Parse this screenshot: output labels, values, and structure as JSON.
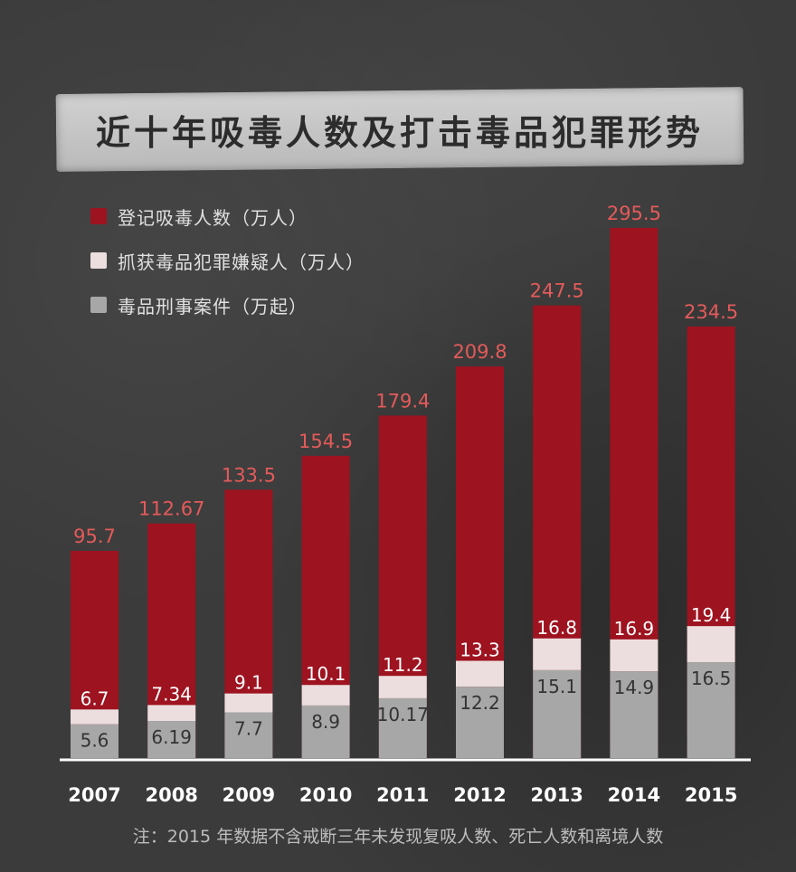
{
  "title": "近十年吸毒人数及打击毒品犯罪形势",
  "colors": {
    "registered": "#9e1320",
    "suspects": "#ecdede",
    "cases": "#a7a7a7",
    "registered_label": "#e45a5a",
    "value_text_dark": "#333333"
  },
  "legend": [
    {
      "label": "登记吸毒人数（万人）",
      "color": "#9e1320"
    },
    {
      "label": "抓获毒品犯罪嫌疑人（万人）",
      "color": "#ecdede"
    },
    {
      "label": "毒品刑事案件（万起）",
      "color": "#a7a7a7"
    }
  ],
  "chart_data": {
    "type": "bar",
    "categories": [
      "2007",
      "2008",
      "2009",
      "2010",
      "2011",
      "2012",
      "2013",
      "2014",
      "2015"
    ],
    "series": [
      {
        "name": "登记吸毒人数（万人）",
        "values": [
          95.7,
          112.67,
          133.5,
          154.5,
          179.4,
          209.8,
          247.5,
          295.5,
          234.5
        ]
      },
      {
        "name": "抓获毒品犯罪嫌疑人（万人）",
        "values": [
          6.7,
          7.34,
          9.1,
          10.1,
          11.2,
          13.3,
          16.8,
          16.9,
          19.4
        ]
      },
      {
        "name": "毒品刑事案件（万起）",
        "values": [
          5.6,
          6.19,
          7.7,
          8.9,
          10.17,
          12.2,
          15.1,
          14.9,
          16.5
        ]
      }
    ],
    "value_labels": {
      "registered": [
        "95.7",
        "112.67",
        "133.5",
        "154.5",
        "179.4",
        "209.8",
        "247.5",
        "295.5",
        "234.5"
      ],
      "suspects": [
        "6.7",
        "7.34",
        "9.1",
        "10.1",
        "11.2",
        "13.3",
        "16.8",
        "16.9",
        "19.4"
      ],
      "cases": [
        "5.6",
        "6.19",
        "7.7",
        "8.9",
        "10.17",
        "12.2",
        "15.1",
        "14.9",
        "16.5"
      ]
    },
    "legend_position": "top-left",
    "grid": false
  },
  "footnote": "注：2015 年数据不含戒断三年未发现复吸人数、死亡人数和离境人数"
}
